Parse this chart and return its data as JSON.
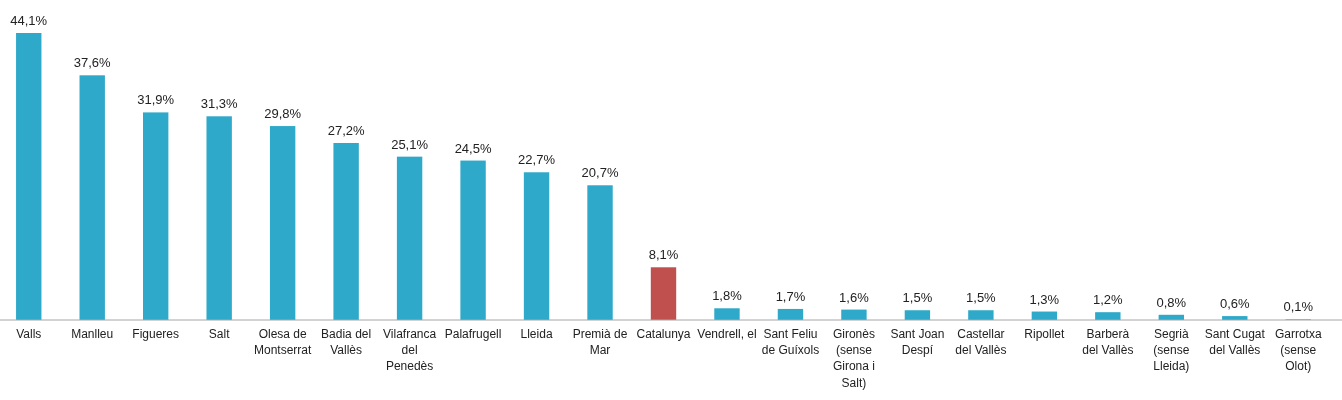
{
  "chart_data": {
    "type": "bar",
    "categories": [
      "Valls",
      "Manlleu",
      "Figueres",
      "Salt",
      "Olesa de Montserrat",
      "Badia del Vallès",
      "Vilafranca del Penedès",
      "Palafrugell",
      "Lleida",
      "Premià de Mar",
      "Catalunya",
      "Vendrell, el",
      "Sant Feliu de Guíxols",
      "Gironès (sense Girona i Salt)",
      "Sant Joan Despí",
      "Castellar del Vallès",
      "Ripollet",
      "Barberà del Vallès",
      "Segrià (sense Lleida)",
      "Sant Cugat del Vallès",
      "Garrotxa (sense Olot)"
    ],
    "values": [
      44.1,
      37.6,
      31.9,
      31.3,
      29.8,
      27.2,
      25.1,
      24.5,
      22.7,
      20.7,
      8.1,
      1.8,
      1.7,
      1.6,
      1.5,
      1.5,
      1.3,
      1.2,
      0.8,
      0.6,
      0.1
    ],
    "value_labels": [
      "44,1%",
      "37,6%",
      "31,9%",
      "31,3%",
      "29,8%",
      "27,2%",
      "25,1%",
      "24,5%",
      "22,7%",
      "20,7%",
      "8,1%",
      "1,8%",
      "1,7%",
      "1,6%",
      "1,5%",
      "1,5%",
      "1,3%",
      "1,2%",
      "0,8%",
      "0,6%",
      "0,1%"
    ],
    "colors": [
      "#2fa9c9",
      "#2fa9c9",
      "#2fa9c9",
      "#2fa9c9",
      "#2fa9c9",
      "#2fa9c9",
      "#2fa9c9",
      "#2fa9c9",
      "#2fa9c9",
      "#2fa9c9",
      "#c0504d",
      "#2fa9c9",
      "#2fa9c9",
      "#2fa9c9",
      "#2fa9c9",
      "#2fa9c9",
      "#2fa9c9",
      "#2fa9c9",
      "#2fa9c9",
      "#2fa9c9",
      "#2fa9c9"
    ],
    "legend": false
  }
}
